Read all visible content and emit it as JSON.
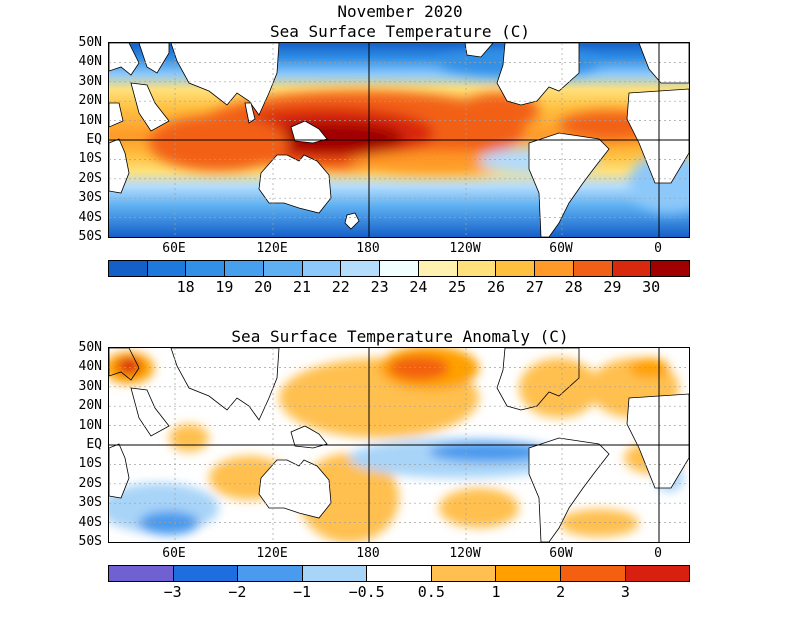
{
  "header": {
    "month": "November 2020",
    "sst_title": "Sea Surface Temperature (C)",
    "anom_title": "Sea Surface Temperature Anomaly (C)"
  },
  "lat_labels": [
    "50N",
    "40N",
    "30N",
    "20N",
    "10N",
    "EQ",
    "10S",
    "20S",
    "30S",
    "40S",
    "50S"
  ],
  "lon_labels": [
    "60E",
    "120E",
    "180",
    "120W",
    "60W",
    "0"
  ],
  "sst_colorbar": {
    "colors": [
      "#1560c8",
      "#1f78dc",
      "#3290e6",
      "#46a0ee",
      "#5eb0f2",
      "#8cc8fa",
      "#b4dcfc",
      "#f0ffff",
      "#fff2b0",
      "#ffe07a",
      "#ffc040",
      "#ff9a28",
      "#f26018",
      "#d8280e",
      "#a00000"
    ],
    "labels": [
      "18",
      "19",
      "20",
      "21",
      "22",
      "23",
      "24",
      "25",
      "26",
      "27",
      "28",
      "29",
      "30"
    ]
  },
  "anom_colorbar": {
    "colors": [
      "#7060d2",
      "#1e6ee0",
      "#4a9aee",
      "#a8d4f8",
      "#ffffff",
      "#ffc050",
      "#ffa000",
      "#f26010",
      "#d82010"
    ],
    "labels": [
      "−3",
      "−2",
      "−1",
      "−0.5",
      "0.5",
      "1",
      "2",
      "3"
    ]
  }
}
